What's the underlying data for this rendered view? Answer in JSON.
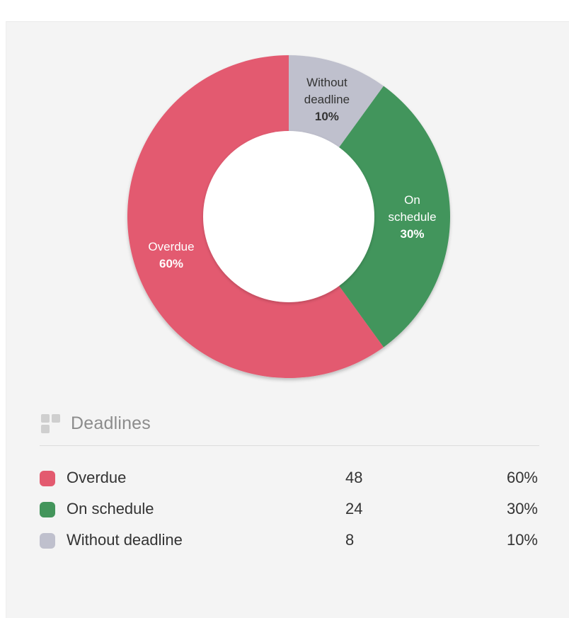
{
  "chart_data": {
    "type": "pie",
    "donut": true,
    "legend_title": "Deadlines",
    "slices": [
      {
        "name": "Overdue",
        "count": 48,
        "percent": 60,
        "percent_label": "60%",
        "color": "#e35a6f",
        "label_color": "#ffffff",
        "label_lines": [
          "Overdue"
        ]
      },
      {
        "name": "On schedule",
        "count": 24,
        "percent": 30,
        "percent_label": "30%",
        "color": "#43955b",
        "label_color": "#ffffff",
        "label_lines": [
          "On",
          "schedule"
        ]
      },
      {
        "name": "Without deadline",
        "count": 8,
        "percent": 10,
        "percent_label": "10%",
        "color": "#bfc0cd",
        "label_color": "#333333",
        "label_lines": [
          "Without",
          "deadline"
        ]
      }
    ]
  },
  "legend_icon": "widget-grid-icon"
}
